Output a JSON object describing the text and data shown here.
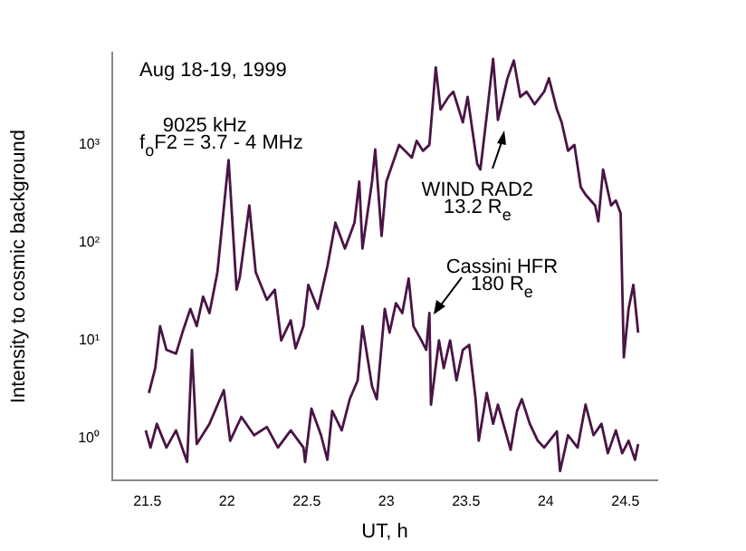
{
  "chart_data": {
    "type": "line",
    "xlabel": "UT, h",
    "ylabel": "Intensity to cosmic background",
    "log": "y",
    "grid": false,
    "legend": false,
    "marker": "none",
    "line_style": "solid",
    "xlim": [
      21.28,
      24.7
    ],
    "xticks": [
      21.5,
      22,
      22.5,
      23,
      23.5,
      24,
      24.5
    ],
    "ylim": [
      0.37,
      8800
    ],
    "yticks": [
      {
        "value": 1,
        "label": "10⁰"
      },
      {
        "value": 10,
        "label": "10¹"
      },
      {
        "value": 100,
        "label": "10²"
      },
      {
        "value": 1000,
        "label": "10³"
      }
    ],
    "annotations": [
      "Aug 18-19, 1999",
      "9025 kHz",
      "f$_{o}$F2 = 3.7 - 4 MHz",
      "WIND RAD2",
      "13.2 R$_{e}$",
      "Cassini HFR",
      "180 R$_{e}$"
    ],
    "series": [
      {
        "color": "#4a1446",
        "x": [
          21.51,
          21.55,
          21.58,
          21.62,
          21.68,
          21.72,
          21.77,
          21.81,
          21.85,
          21.89,
          21.94,
          22.01,
          22.06,
          22.08,
          22.14,
          22.18,
          22.25,
          22.3,
          22.34,
          22.4,
          22.43,
          22.48,
          22.51,
          22.57,
          22.63,
          22.68,
          22.74,
          22.8,
          22.83,
          22.85,
          22.91,
          22.93,
          22.97,
          23.0,
          23.08,
          23.16,
          23.19,
          23.23,
          23.27,
          23.31,
          23.34,
          23.39,
          23.42,
          23.48,
          23.51,
          23.57,
          23.59,
          23.63,
          23.67,
          23.7,
          23.76,
          23.8,
          23.84,
          23.88,
          23.93,
          23.99,
          24.02,
          24.07,
          24.1,
          24.14,
          24.18,
          24.22,
          24.25,
          24.31,
          24.33,
          24.36,
          24.41,
          24.44,
          24.47,
          24.48,
          24.49,
          24.52,
          24.55,
          24.58
        ],
        "values": [
          2.9,
          5.2,
          14,
          8,
          7.3,
          12,
          21,
          14,
          28,
          19,
          50,
          700,
          33,
          44,
          240,
          50,
          26,
          33,
          10,
          16,
          8.3,
          14,
          37,
          21,
          57,
          160,
          87,
          160,
          420,
          87,
          420,
          900,
          117,
          420,
          1000,
          740,
          1100,
          870,
          1000,
          6200,
          2300,
          3100,
          3500,
          1700,
          3100,
          640,
          560,
          2000,
          7600,
          1800,
          4800,
          7300,
          3100,
          3500,
          2600,
          3500,
          4800,
          2300,
          1700,
          870,
          1000,
          370,
          310,
          240,
          165,
          560,
          240,
          270,
          200,
          37,
          6.7,
          21,
          37,
          12
        ]
      },
      {
        "color": "#4a1446",
        "x": [
          21.49,
          21.52,
          21.56,
          21.62,
          21.68,
          21.75,
          21.78,
          21.81,
          21.89,
          21.98,
          22.02,
          22.09,
          22.17,
          22.25,
          22.32,
          22.4,
          22.48,
          22.49,
          22.53,
          22.59,
          22.63,
          22.66,
          22.72,
          22.77,
          22.82,
          22.85,
          22.91,
          22.94,
          22.99,
          23.02,
          23.06,
          23.1,
          23.14,
          23.17,
          23.22,
          23.25,
          23.27,
          23.28,
          23.33,
          23.36,
          23.4,
          23.44,
          23.48,
          23.52,
          23.56,
          23.58,
          23.63,
          23.67,
          23.7,
          23.78,
          23.82,
          23.85,
          23.9,
          23.95,
          23.99,
          24.07,
          24.09,
          24.14,
          24.2,
          24.25,
          24.3,
          24.35,
          24.39,
          24.44,
          24.48,
          24.52,
          24.56,
          24.58
        ],
        "values": [
          1.2,
          0.8,
          1.4,
          0.8,
          1.2,
          0.57,
          8,
          0.87,
          1.4,
          3.1,
          0.94,
          1.65,
          1.07,
          1.3,
          0.8,
          1.2,
          0.8,
          0.57,
          2.0,
          1.07,
          0.6,
          1.9,
          1.2,
          2.5,
          3.9,
          14,
          3.4,
          2.5,
          21,
          12,
          24,
          19,
          43,
          14,
          10,
          8,
          19,
          2.2,
          10,
          5.2,
          10,
          3.9,
          8,
          9,
          2.5,
          0.94,
          2.9,
          1.4,
          2.2,
          0.76,
          1.9,
          2.5,
          1.4,
          0.94,
          0.8,
          1.17,
          0.46,
          1.07,
          0.8,
          2.2,
          1.07,
          1.4,
          0.7,
          1.2,
          0.7,
          0.94,
          0.6,
          0.87
        ]
      }
    ]
  }
}
